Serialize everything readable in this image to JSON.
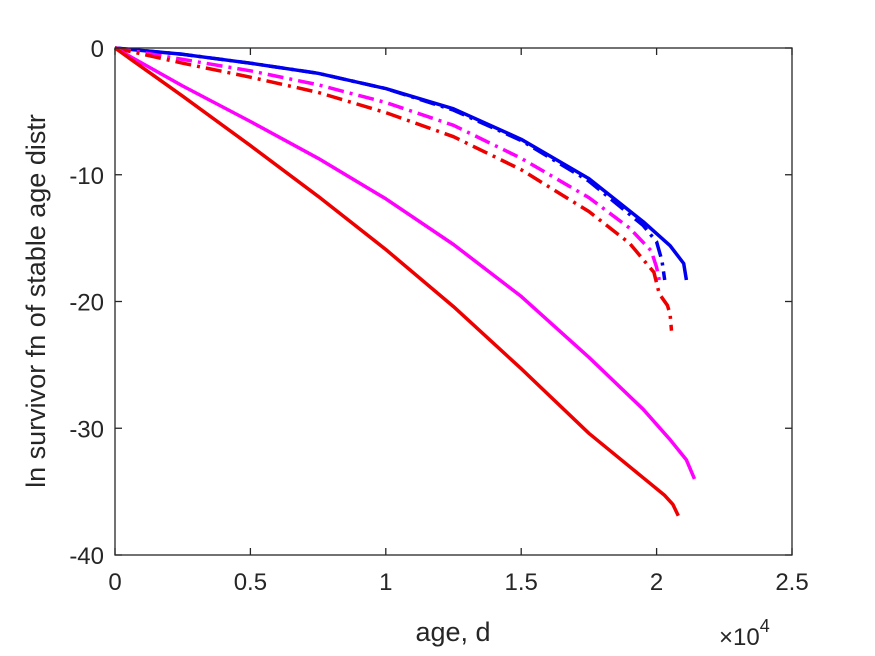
{
  "chart_data": {
    "type": "line",
    "title": "",
    "xlabel": "age, d",
    "ylabel": "ln survivor fn of stable age distr",
    "x_multiplier_label": "×10",
    "x_multiplier_exponent": "4",
    "xlim": [
      0,
      25000
    ],
    "ylim": [
      -40,
      0
    ],
    "xticks": [
      0,
      5000,
      10000,
      15000,
      20000,
      25000
    ],
    "xtick_labels": [
      "0",
      "0.5",
      "1",
      "1.5",
      "2",
      "2.5"
    ],
    "yticks": [
      0,
      -10,
      -20,
      -30,
      -40
    ],
    "ytick_labels": [
      "0",
      "-10",
      "-20",
      "-30",
      "-40"
    ],
    "grid": false,
    "legend": "none",
    "series": [
      {
        "color": "#0000ee",
        "style": "solid",
        "x": [
          0,
          2500,
          5000,
          7500,
          10000,
          12500,
          15000,
          17500,
          19500,
          20500,
          21000,
          21100
        ],
        "y": [
          0,
          -0.5,
          -1.2,
          -2.0,
          -3.2,
          -4.8,
          -7.2,
          -10.3,
          -13.7,
          -15.6,
          -17.0,
          -18.3
        ]
      },
      {
        "color": "#0000ee",
        "style": "dashdot",
        "x": [
          0,
          2500,
          5000,
          7500,
          10000,
          12500,
          15000,
          17500,
          19500,
          20000,
          20200,
          20300
        ],
        "y": [
          0,
          -0.5,
          -1.2,
          -2.0,
          -3.2,
          -4.9,
          -7.3,
          -10.5,
          -14.0,
          -15.3,
          -16.8,
          -18.3
        ]
      },
      {
        "color": "#ff00ff",
        "style": "dashdot",
        "x": [
          0,
          2500,
          5000,
          7500,
          10000,
          12500,
          15000,
          17500,
          19000,
          19800,
          20000,
          20100
        ],
        "y": [
          0,
          -0.9,
          -1.8,
          -2.9,
          -4.3,
          -6.1,
          -8.7,
          -11.8,
          -14.2,
          -16.0,
          -17.3,
          -18.3
        ]
      },
      {
        "color": "#ee0000",
        "style": "dashdot",
        "x": [
          0,
          2500,
          5000,
          7500,
          10000,
          12500,
          15000,
          17500,
          19000,
          19900,
          20100,
          20400,
          20500,
          20550
        ],
        "y": [
          0,
          -1.2,
          -2.3,
          -3.5,
          -5.1,
          -7.0,
          -9.6,
          -12.9,
          -15.4,
          -17.7,
          -19.4,
          -20.3,
          -21.0,
          -22.3
        ]
      },
      {
        "color": "#ff00ff",
        "style": "solid",
        "x": [
          0,
          2500,
          5000,
          7500,
          10000,
          12500,
          15000,
          17500,
          19500,
          20500,
          21100,
          21400
        ],
        "y": [
          0,
          -3.0,
          -5.8,
          -8.7,
          -11.9,
          -15.5,
          -19.6,
          -24.4,
          -28.5,
          -30.9,
          -32.5,
          -34.0
        ]
      },
      {
        "color": "#ee0000",
        "style": "solid",
        "x": [
          0,
          2500,
          5000,
          7500,
          10000,
          12500,
          15000,
          17500,
          19500,
          20300,
          20600,
          20800
        ],
        "y": [
          0,
          -3.8,
          -7.7,
          -11.7,
          -15.9,
          -20.4,
          -25.3,
          -30.4,
          -33.9,
          -35.3,
          -36.0,
          -36.9
        ]
      }
    ]
  }
}
